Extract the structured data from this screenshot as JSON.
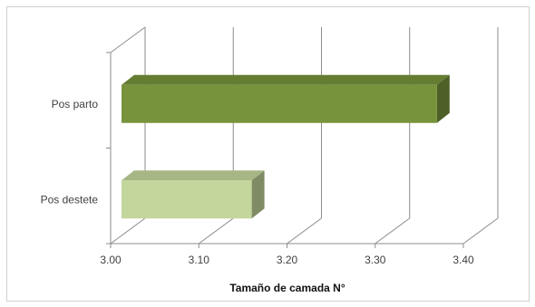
{
  "chart_data": {
    "type": "bar",
    "orientation": "horizontal",
    "style": "3d-clustered",
    "categories": [
      "Pos parto",
      "Pos destete"
    ],
    "series": [
      {
        "values": [
          3.37,
          3.16
        ],
        "colors": [
          "#77933c",
          "#c3d69b"
        ]
      }
    ],
    "xlabel": "Tamaño de camada  N°",
    "ylabel": "",
    "xlim": [
      3.0,
      3.4
    ],
    "xticks": [
      "3.00",
      "3.10",
      "3.20",
      "3.30",
      "3.40"
    ],
    "grid": "vertical-major",
    "legend": "none"
  }
}
